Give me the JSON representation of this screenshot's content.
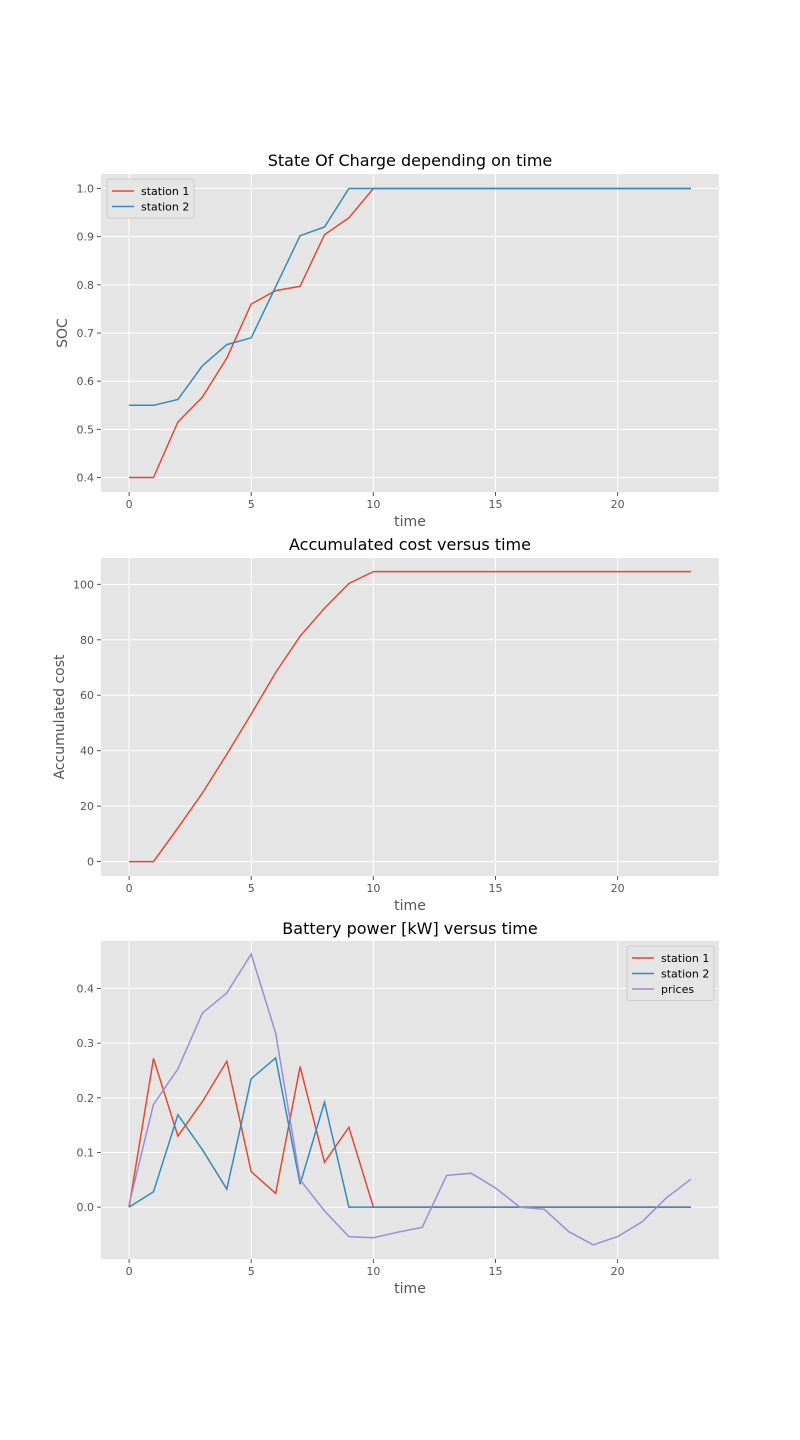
{
  "chart_data": [
    {
      "type": "line",
      "title": "State Of Charge depending on time",
      "xlabel": "time",
      "ylabel": "SOC",
      "xlim": [
        -1.15,
        24.15
      ],
      "ylim": [
        0.37,
        1.03
      ],
      "xticks": [
        0,
        5,
        10,
        15,
        20
      ],
      "yticks": [
        0.4,
        0.5,
        0.6,
        0.7,
        0.8,
        0.9,
        1.0
      ],
      "ytick_labels": [
        "0.4",
        "0.5",
        "0.6",
        "0.7",
        "0.8",
        "0.9",
        "1.0"
      ],
      "grid": true,
      "legend": "upper-left",
      "x": [
        0,
        1,
        2,
        3,
        4,
        5,
        6,
        7,
        8,
        9,
        10,
        11,
        12,
        13,
        14,
        15,
        16,
        17,
        18,
        19,
        20,
        21,
        22,
        23
      ],
      "series": [
        {
          "name": "station 1",
          "color": "#e24a33",
          "values": [
            0.4,
            0.4,
            0.515,
            0.567,
            0.648,
            0.76,
            0.788,
            0.797,
            0.904,
            0.939,
            1.0,
            1.0,
            1.0,
            1.0,
            1.0,
            1.0,
            1.0,
            1.0,
            1.0,
            1.0,
            1.0,
            1.0,
            1.0,
            1.0
          ]
        },
        {
          "name": "station 2",
          "color": "#348abd",
          "values": [
            0.55,
            0.55,
            0.562,
            0.632,
            0.676,
            0.69,
            0.796,
            0.902,
            0.92,
            1.0,
            1.0,
            1.0,
            1.0,
            1.0,
            1.0,
            1.0,
            1.0,
            1.0,
            1.0,
            1.0,
            1.0,
            1.0,
            1.0,
            1.0
          ]
        }
      ]
    },
    {
      "type": "line",
      "title": "Accumulated cost versus time",
      "xlabel": "time",
      "ylabel": "Accumulated cost",
      "xlim": [
        -1.15,
        24.15
      ],
      "ylim": [
        -5.2,
        109.5
      ],
      "xticks": [
        0,
        5,
        10,
        15,
        20
      ],
      "yticks": [
        0,
        20,
        40,
        60,
        80,
        100
      ],
      "ytick_labels": [
        "0",
        "20",
        "40",
        "60",
        "80",
        "100"
      ],
      "grid": true,
      "legend": "none",
      "x": [
        0,
        1,
        2,
        3,
        4,
        5,
        6,
        7,
        8,
        9,
        10,
        11,
        12,
        13,
        14,
        15,
        16,
        17,
        18,
        19,
        20,
        21,
        22,
        23
      ],
      "series": [
        {
          "name": "",
          "color": "#e24a33",
          "values": [
            0,
            0,
            12.1,
            24.7,
            38.7,
            53.2,
            68.2,
            81.3,
            91.4,
            100.3,
            104.6,
            104.6,
            104.6,
            104.6,
            104.6,
            104.6,
            104.6,
            104.6,
            104.6,
            104.6,
            104.6,
            104.6,
            104.6,
            104.6
          ]
        }
      ]
    },
    {
      "type": "line",
      "title": "Battery power [kW] versus time",
      "xlabel": "time",
      "ylabel": "",
      "xlim": [
        -1.15,
        24.15
      ],
      "ylim": [
        -0.095,
        0.487
      ],
      "xticks": [
        0,
        5,
        10,
        15,
        20
      ],
      "yticks": [
        0.0,
        0.1,
        0.2,
        0.3,
        0.4
      ],
      "ytick_labels": [
        "0.0",
        "0.1",
        "0.2",
        "0.3",
        "0.4"
      ],
      "grid": true,
      "legend": "upper-right",
      "x": [
        0,
        1,
        2,
        3,
        4,
        5,
        6,
        7,
        8,
        9,
        10,
        11,
        12,
        13,
        14,
        15,
        16,
        17,
        18,
        19,
        20,
        21,
        22,
        23
      ],
      "series": [
        {
          "name": "station 1",
          "color": "#e24a33",
          "values": [
            0.0,
            0.272,
            0.13,
            0.193,
            0.267,
            0.065,
            0.025,
            0.257,
            0.082,
            0.146,
            0.0,
            0.0,
            0.0,
            0.0,
            0.0,
            0.0,
            0.0,
            0.0,
            0.0,
            0.0,
            0.0,
            0.0,
            0.0,
            0.0
          ]
        },
        {
          "name": "station 2",
          "color": "#348abd",
          "values": [
            0.0,
            0.028,
            0.169,
            0.105,
            0.033,
            0.235,
            0.273,
            0.042,
            0.192,
            0.0,
            0.0,
            0.0,
            0.0,
            0.0,
            0.0,
            0.0,
            0.0,
            0.0,
            0.0,
            0.0,
            0.0,
            0.0,
            0.0,
            0.0
          ]
        },
        {
          "name": "prices",
          "color": "#988ed5",
          "values": [
            0.005,
            0.188,
            0.253,
            0.355,
            0.392,
            0.463,
            0.318,
            0.05,
            -0.007,
            -0.054,
            -0.056,
            -0.046,
            -0.037,
            0.058,
            0.062,
            0.035,
            0.0,
            -0.004,
            -0.045,
            -0.069,
            -0.054,
            -0.027,
            0.017,
            0.051
          ]
        }
      ]
    }
  ]
}
